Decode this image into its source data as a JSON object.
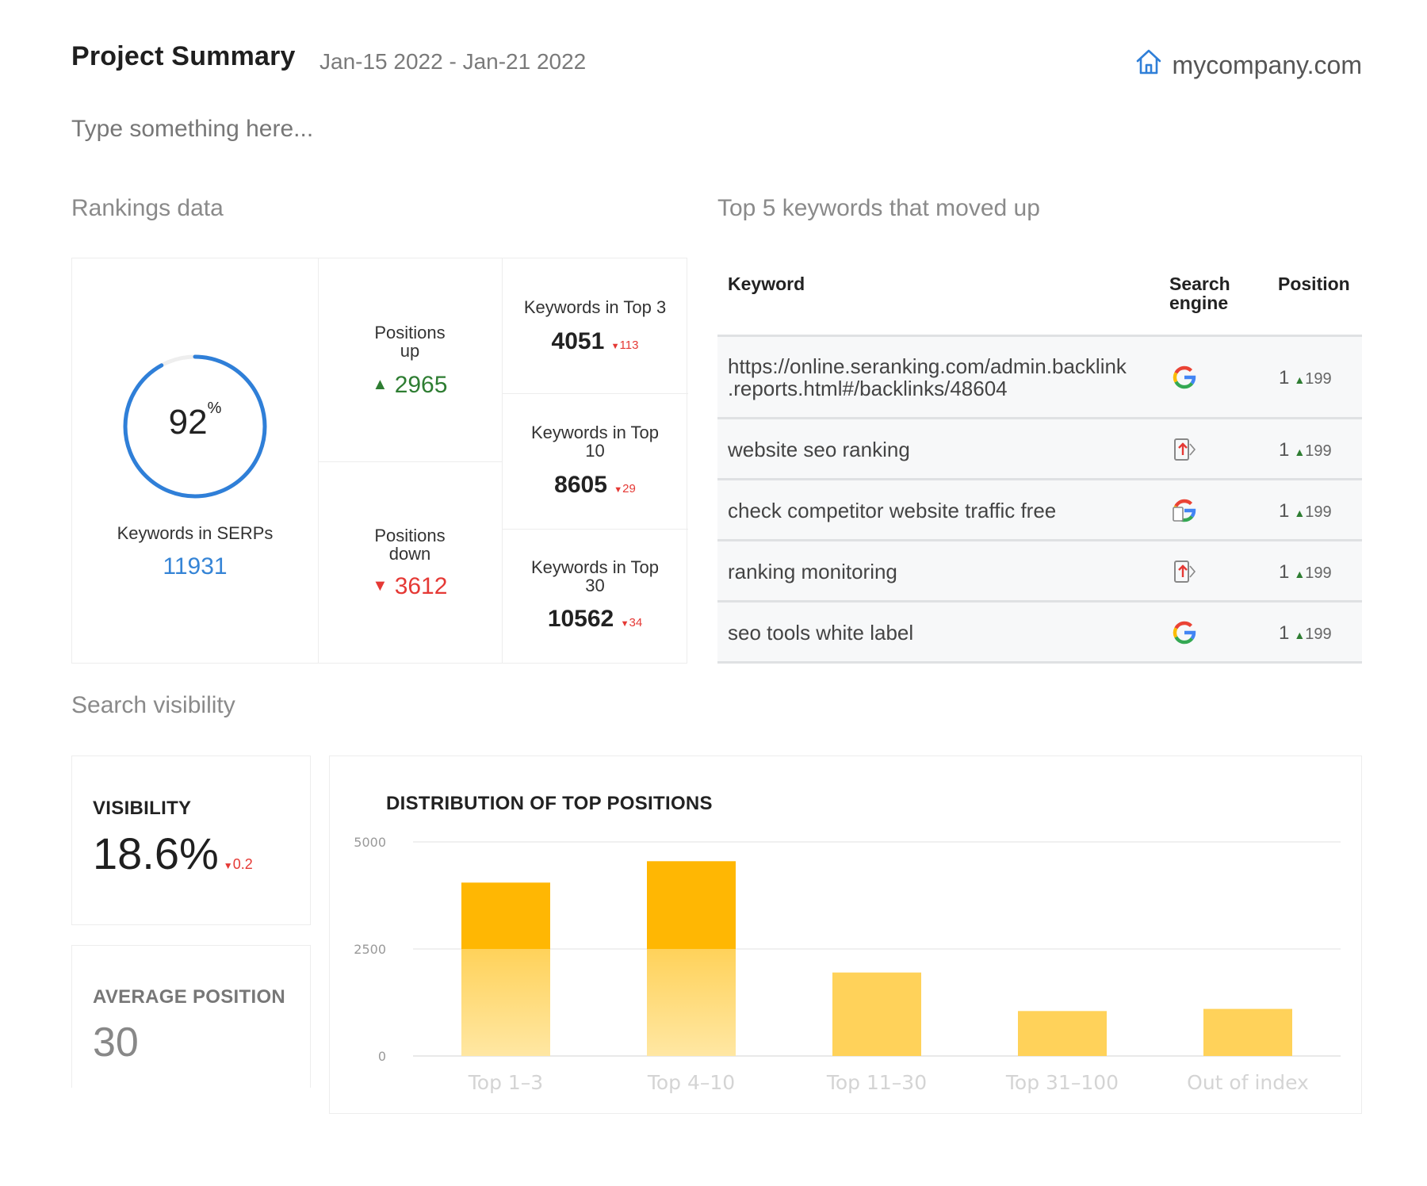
{
  "header": {
    "title": "Project Summary",
    "date_range": "Jan-15 2022 - Jan-21 2022",
    "site": "mycompany.com",
    "site_icon": "home-icon",
    "notes_placeholder": "Type something here..."
  },
  "rankings": {
    "section_title": "Rankings data",
    "serps": {
      "percent": "92",
      "percent_sign": "%",
      "percent_value": 92,
      "label": "Keywords in SERPs",
      "value": "11931"
    },
    "positions_up": {
      "label_line1": "Positions",
      "label_line2": "up",
      "value": "2965"
    },
    "positions_down": {
      "label_line1": "Positions",
      "label_line2": "down",
      "value": "3612"
    },
    "top3": {
      "label": "Keywords in Top 3",
      "value": "4051",
      "delta": "113"
    },
    "top10": {
      "label_line1": "Keywords in Top",
      "label_line2": "10",
      "value": "8605",
      "delta": "29"
    },
    "top30": {
      "label_line1": "Keywords in Top",
      "label_line2": "30",
      "value": "10562",
      "delta": "34"
    }
  },
  "keywords": {
    "section_title": "Top 5 keywords that moved up",
    "headers": {
      "keyword": "Keyword",
      "engine_line1": "Search",
      "engine_line2": "engine",
      "position": "Position"
    },
    "rows": [
      {
        "keyword_line1": "https://online.seranking.com/admin.backlink",
        "keyword_line2": ".reports.html#/backlinks/48604",
        "engine": "google-icon",
        "position": "1",
        "change": "199"
      },
      {
        "keyword_line1": "website seo ranking",
        "engine": "google-mobile-icon",
        "position": "1",
        "change": "199"
      },
      {
        "keyword_line1": "check competitor website traffic free",
        "engine": "google-local-icon",
        "position": "1",
        "change": "199"
      },
      {
        "keyword_line1": "ranking monitoring",
        "engine": "google-mobile-icon",
        "position": "1",
        "change": "199"
      },
      {
        "keyword_line1": "seo tools white label",
        "engine": "google-icon",
        "position": "1",
        "change": "199"
      }
    ]
  },
  "visibility": {
    "section_title": "Search visibility",
    "visibility_label": "VISIBILITY",
    "visibility_value": "18.6%",
    "visibility_delta": "0.2",
    "avg_label": "AVERAGE POSITION",
    "avg_value": "30"
  },
  "chart_data": {
    "type": "bar",
    "title": "DISTRIBUTION OF TOP POSITIONS",
    "categories": [
      "Top 1–3",
      "Top 4–10",
      "Top 11–30",
      "Top 31–100",
      "Out of index"
    ],
    "values": [
      4050,
      4550,
      1950,
      1050,
      1100
    ],
    "yticks": [
      0,
      2500,
      5000
    ],
    "ylim": [
      0,
      5000
    ],
    "grid": true,
    "colors": {
      "strong": "#ffb703",
      "light": "#ffd25a",
      "pale": "#ffe7a3"
    }
  },
  "colors": {
    "accent_blue": "#2f7fd8",
    "up_green": "#2e7d32",
    "down_red": "#e53935"
  }
}
